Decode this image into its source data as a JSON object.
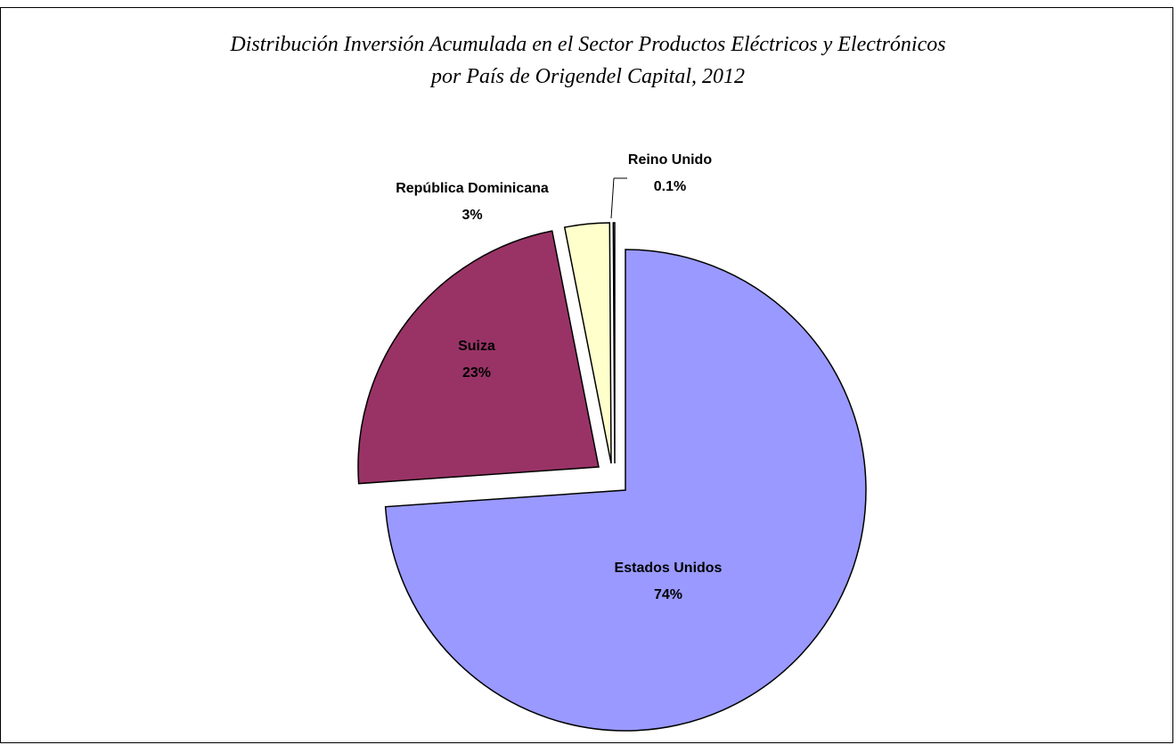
{
  "chart_data": {
    "type": "pie",
    "title": "Distribución Inversión Acumulada en el Sector Productos Eléctricos y Electrónicos",
    "subtitle": "por País de Origendel Capital, 2012",
    "slices": [
      {
        "label": "Estados Unidos",
        "value": 73.9,
        "display": "74%",
        "color": "#9999ff"
      },
      {
        "label": "Suiza",
        "value": 23.0,
        "display": "23%",
        "color": "#993366"
      },
      {
        "label": "República Dominicana",
        "value": 3.0,
        "display": "3%",
        "color": "#ffffcc"
      },
      {
        "label": "Reino Unido",
        "value": 0.1,
        "display": "0.1%",
        "color": "#ffffcc"
      }
    ],
    "legend": "none",
    "exploded": true
  }
}
